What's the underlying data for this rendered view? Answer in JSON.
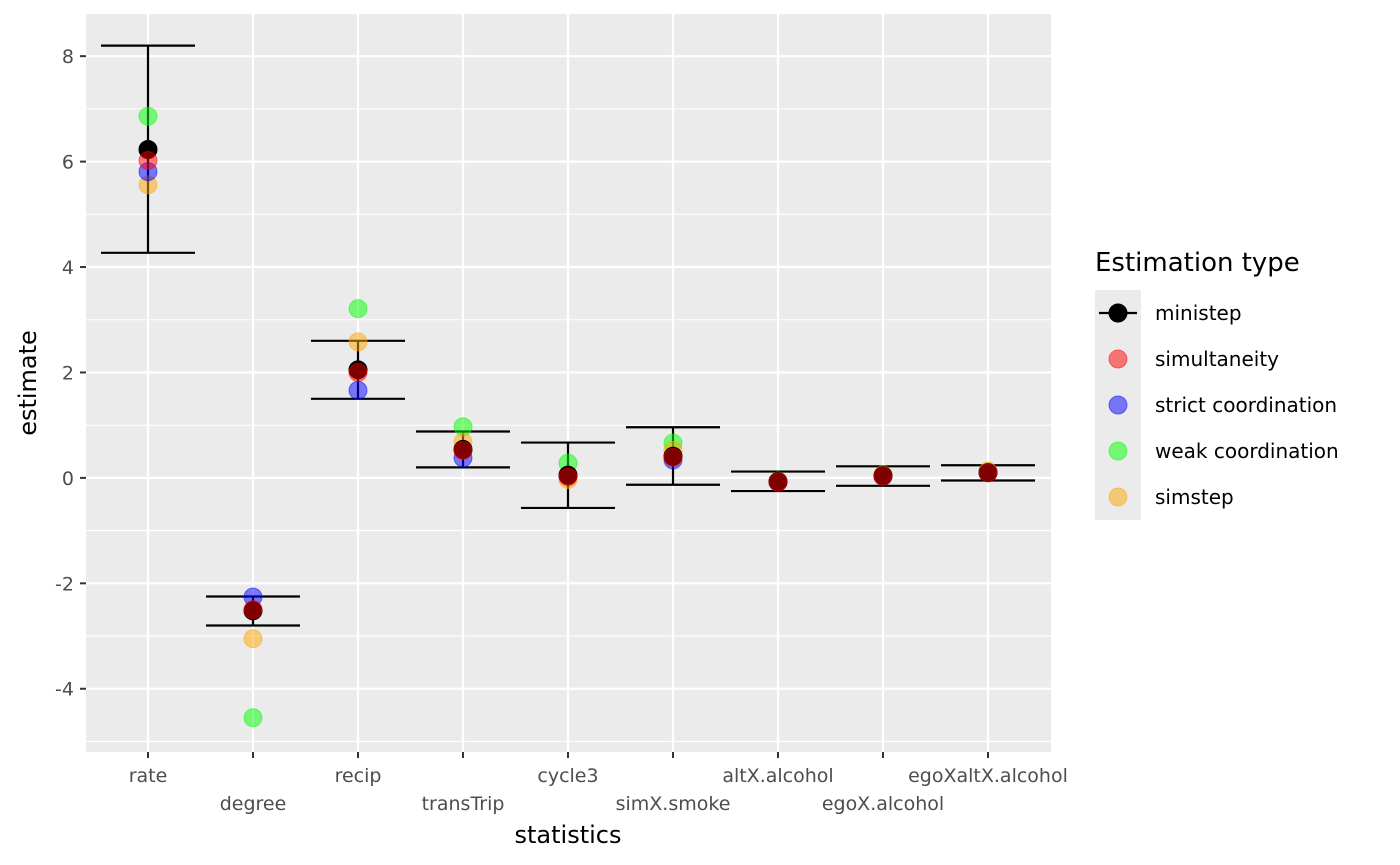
{
  "chart_data": {
    "type": "scatter",
    "title": "",
    "xlabel": "statistics",
    "ylabel": "estimate",
    "categories": [
      "rate",
      "degree",
      "recip",
      "transTrip",
      "cycle3",
      "simX.smoke",
      "altX.alcohol",
      "egoX.alcohol",
      "egoXaltX.alcohol"
    ],
    "ylim": [
      -5.2,
      8.8
    ],
    "yticks": [
      -4,
      -2,
      0,
      2,
      4,
      6,
      8
    ],
    "ytick_labels": [
      "-4",
      "-2",
      "0",
      "2",
      "4",
      "6",
      "8"
    ],
    "grid": true,
    "legend_position": "right",
    "legend_title": "Estimation type",
    "error_bars": {
      "series": "ministep",
      "lower": [
        4.27,
        -2.8,
        1.5,
        0.2,
        -0.57,
        -0.13,
        -0.25,
        -0.15,
        -0.05
      ],
      "upper": [
        8.2,
        -2.25,
        2.6,
        0.88,
        0.67,
        0.96,
        0.12,
        0.22,
        0.24
      ]
    },
    "series": [
      {
        "name": "ministep",
        "color": "#000000",
        "opacity": 1.0,
        "values": [
          6.23,
          -2.52,
          2.05,
          0.54,
          0.05,
          0.41,
          -0.07,
          0.04,
          0.1
        ]
      },
      {
        "name": "simultaneity",
        "color": "#ff0000",
        "opacity": 0.5,
        "values": [
          6.02,
          -2.5,
          2.0,
          0.52,
          0.02,
          0.39,
          -0.08,
          0.03,
          0.1
        ]
      },
      {
        "name": "strict coordination",
        "color": "#0000ff",
        "opacity": 0.5,
        "values": [
          5.81,
          -2.26,
          1.66,
          0.38,
          0.05,
          0.34,
          -0.08,
          0.03,
          0.1
        ]
      },
      {
        "name": "weak coordination",
        "color": "#00ff00",
        "opacity": 0.5,
        "values": [
          6.86,
          -4.55,
          3.21,
          0.97,
          0.28,
          0.66,
          -0.07,
          0.04,
          0.11
        ]
      },
      {
        "name": "simstep",
        "color": "#ffa500",
        "opacity": 0.5,
        "values": [
          5.56,
          -3.05,
          2.58,
          0.68,
          -0.03,
          0.52,
          -0.06,
          0.06,
          0.13
        ]
      }
    ]
  }
}
